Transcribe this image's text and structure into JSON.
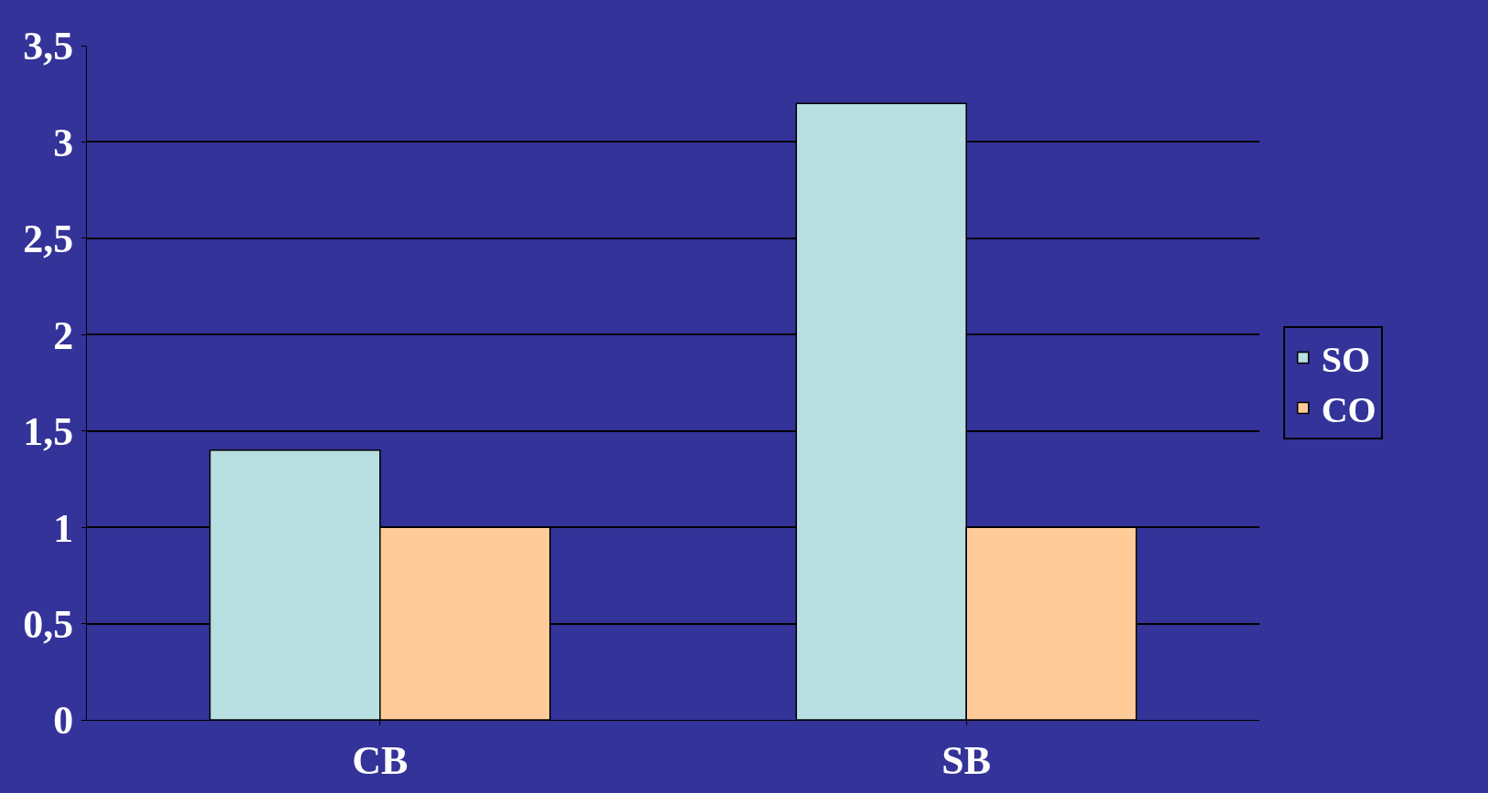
{
  "chart_data": {
    "type": "bar",
    "categories": [
      "CB",
      "SB"
    ],
    "series": [
      {
        "name": "SO",
        "color": "#b8dfe1",
        "values": [
          1.4,
          3.2
        ]
      },
      {
        "name": "CO",
        "color": "#ffcc99",
        "values": [
          1.0,
          1.0
        ]
      }
    ],
    "ylim": [
      0,
      3.5
    ],
    "yticks": [
      0,
      {
        "value": 0.5,
        "label": "0,5"
      },
      1,
      {
        "value": 1.5,
        "label": "1,5"
      },
      2,
      {
        "value": 2.5,
        "label": "2,5"
      },
      3,
      {
        "value": 3.5,
        "label": "3,5"
      }
    ],
    "grid": "y",
    "legend": "right"
  }
}
